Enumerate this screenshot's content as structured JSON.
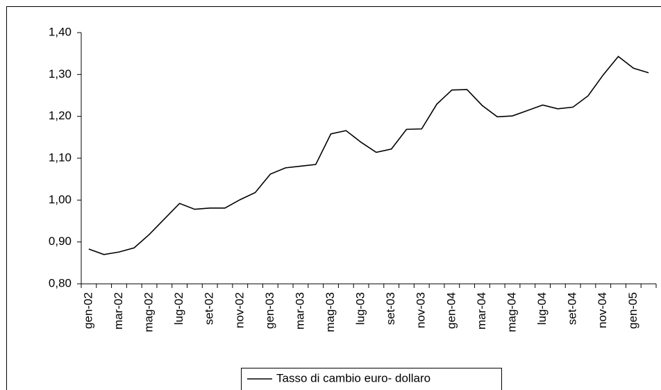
{
  "chart_data": {
    "type": "line",
    "categories": [
      "gen-02",
      null,
      "mar-02",
      null,
      "mag-02",
      null,
      "lug-02",
      null,
      "set-02",
      null,
      "nov-02",
      null,
      "gen-03",
      null,
      "mar-03",
      null,
      "mag-03",
      null,
      "lug-03",
      null,
      "set-03",
      null,
      "nov-03",
      null,
      "gen-04",
      null,
      "mar-04",
      null,
      "mag-04",
      null,
      "lug-04",
      null,
      "set-04",
      null,
      "nov-04",
      null,
      "gen-05",
      null
    ],
    "series": [
      {
        "name": "Tasso di cambio euro- dollaro",
        "color": "#000000",
        "values": [
          0.883,
          0.87,
          0.876,
          0.886,
          0.918,
          0.955,
          0.992,
          0.978,
          0.981,
          0.981,
          1.001,
          1.018,
          1.062,
          1.077,
          1.081,
          1.085,
          1.158,
          1.166,
          1.138,
          1.114,
          1.122,
          1.169,
          1.17,
          1.229,
          1.263,
          1.264,
          1.226,
          1.199,
          1.201,
          1.214,
          1.227,
          1.218,
          1.222,
          1.249,
          1.299,
          1.343,
          1.315,
          1.304
        ]
      }
    ],
    "ylim": [
      0.8,
      1.4
    ],
    "yticks": [
      {
        "value": 0.8,
        "label": "0,80"
      },
      {
        "value": 0.9,
        "label": "0,90"
      },
      {
        "value": 1.0,
        "label": "1,00"
      },
      {
        "value": 1.1,
        "label": "1,10"
      },
      {
        "value": 1.2,
        "label": "1,20"
      },
      {
        "value": 1.3,
        "label": "1,30"
      },
      {
        "value": 1.4,
        "label": "1,40"
      }
    ],
    "legend": "bottom"
  }
}
